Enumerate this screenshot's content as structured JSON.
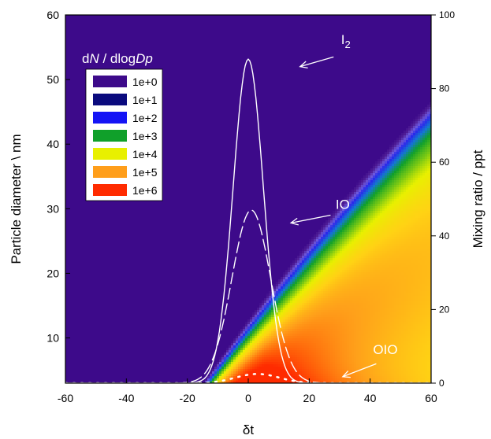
{
  "chart_data": {
    "type": "heatmap",
    "xlabel": "δt",
    "ylabel_left": "Particle diameter \\ nm",
    "ylabel_right": "Mixing ratio / ppt",
    "xlim": [
      -60,
      60
    ],
    "ylim_left": [
      3,
      60
    ],
    "ylim_right": [
      0,
      100
    ],
    "x_ticks": [
      -60,
      -40,
      -20,
      0,
      20,
      40,
      60
    ],
    "y_left_ticks": [
      10,
      20,
      30,
      40,
      50,
      60
    ],
    "y_right_ticks": [
      0,
      20,
      40,
      60,
      80,
      100
    ],
    "legend": {
      "title_prefix": "d",
      "title_N": "N",
      "title_mid": " / dlog",
      "title_Dp": "Dp",
      "entries": [
        {
          "label": "1e+0",
          "color": "#3d0a8a"
        },
        {
          "label": "1e+1",
          "color": "#0a0a7d"
        },
        {
          "label": "1e+2",
          "color": "#1414f5"
        },
        {
          "label": "1e+3",
          "color": "#10a02a"
        },
        {
          "label": "1e+4",
          "color": "#e8f000"
        },
        {
          "label": "1e+5",
          "color": "#ff9e1a"
        },
        {
          "label": "1e+6",
          "color": "#ff2b00"
        }
      ]
    },
    "series": [
      {
        "name": "I",
        "subscript": "2",
        "peak_x": 0,
        "peak_ppt": 88,
        "width": 7,
        "style": "solid",
        "label_x": 32,
        "label_y": 55.5,
        "arrow_from": [
          28,
          53.5
        ],
        "arrow_to": [
          17,
          52
        ]
      },
      {
        "name": "IO",
        "peak_x": 1,
        "peak_ppt": 47,
        "width": 9,
        "style": "dashed",
        "label_x": 31,
        "label_y": 30,
        "arrow_from": [
          27,
          29
        ],
        "arrow_to": [
          14,
          27.8
        ]
      },
      {
        "name": "OIO",
        "peak_x": 3,
        "peak_ppt": 2.5,
        "width": 10,
        "style": "dotted",
        "label_x": 45,
        "label_y": 7.5,
        "arrow_from": [
          42,
          6
        ],
        "arrow_to": [
          31,
          4
        ]
      }
    ]
  }
}
